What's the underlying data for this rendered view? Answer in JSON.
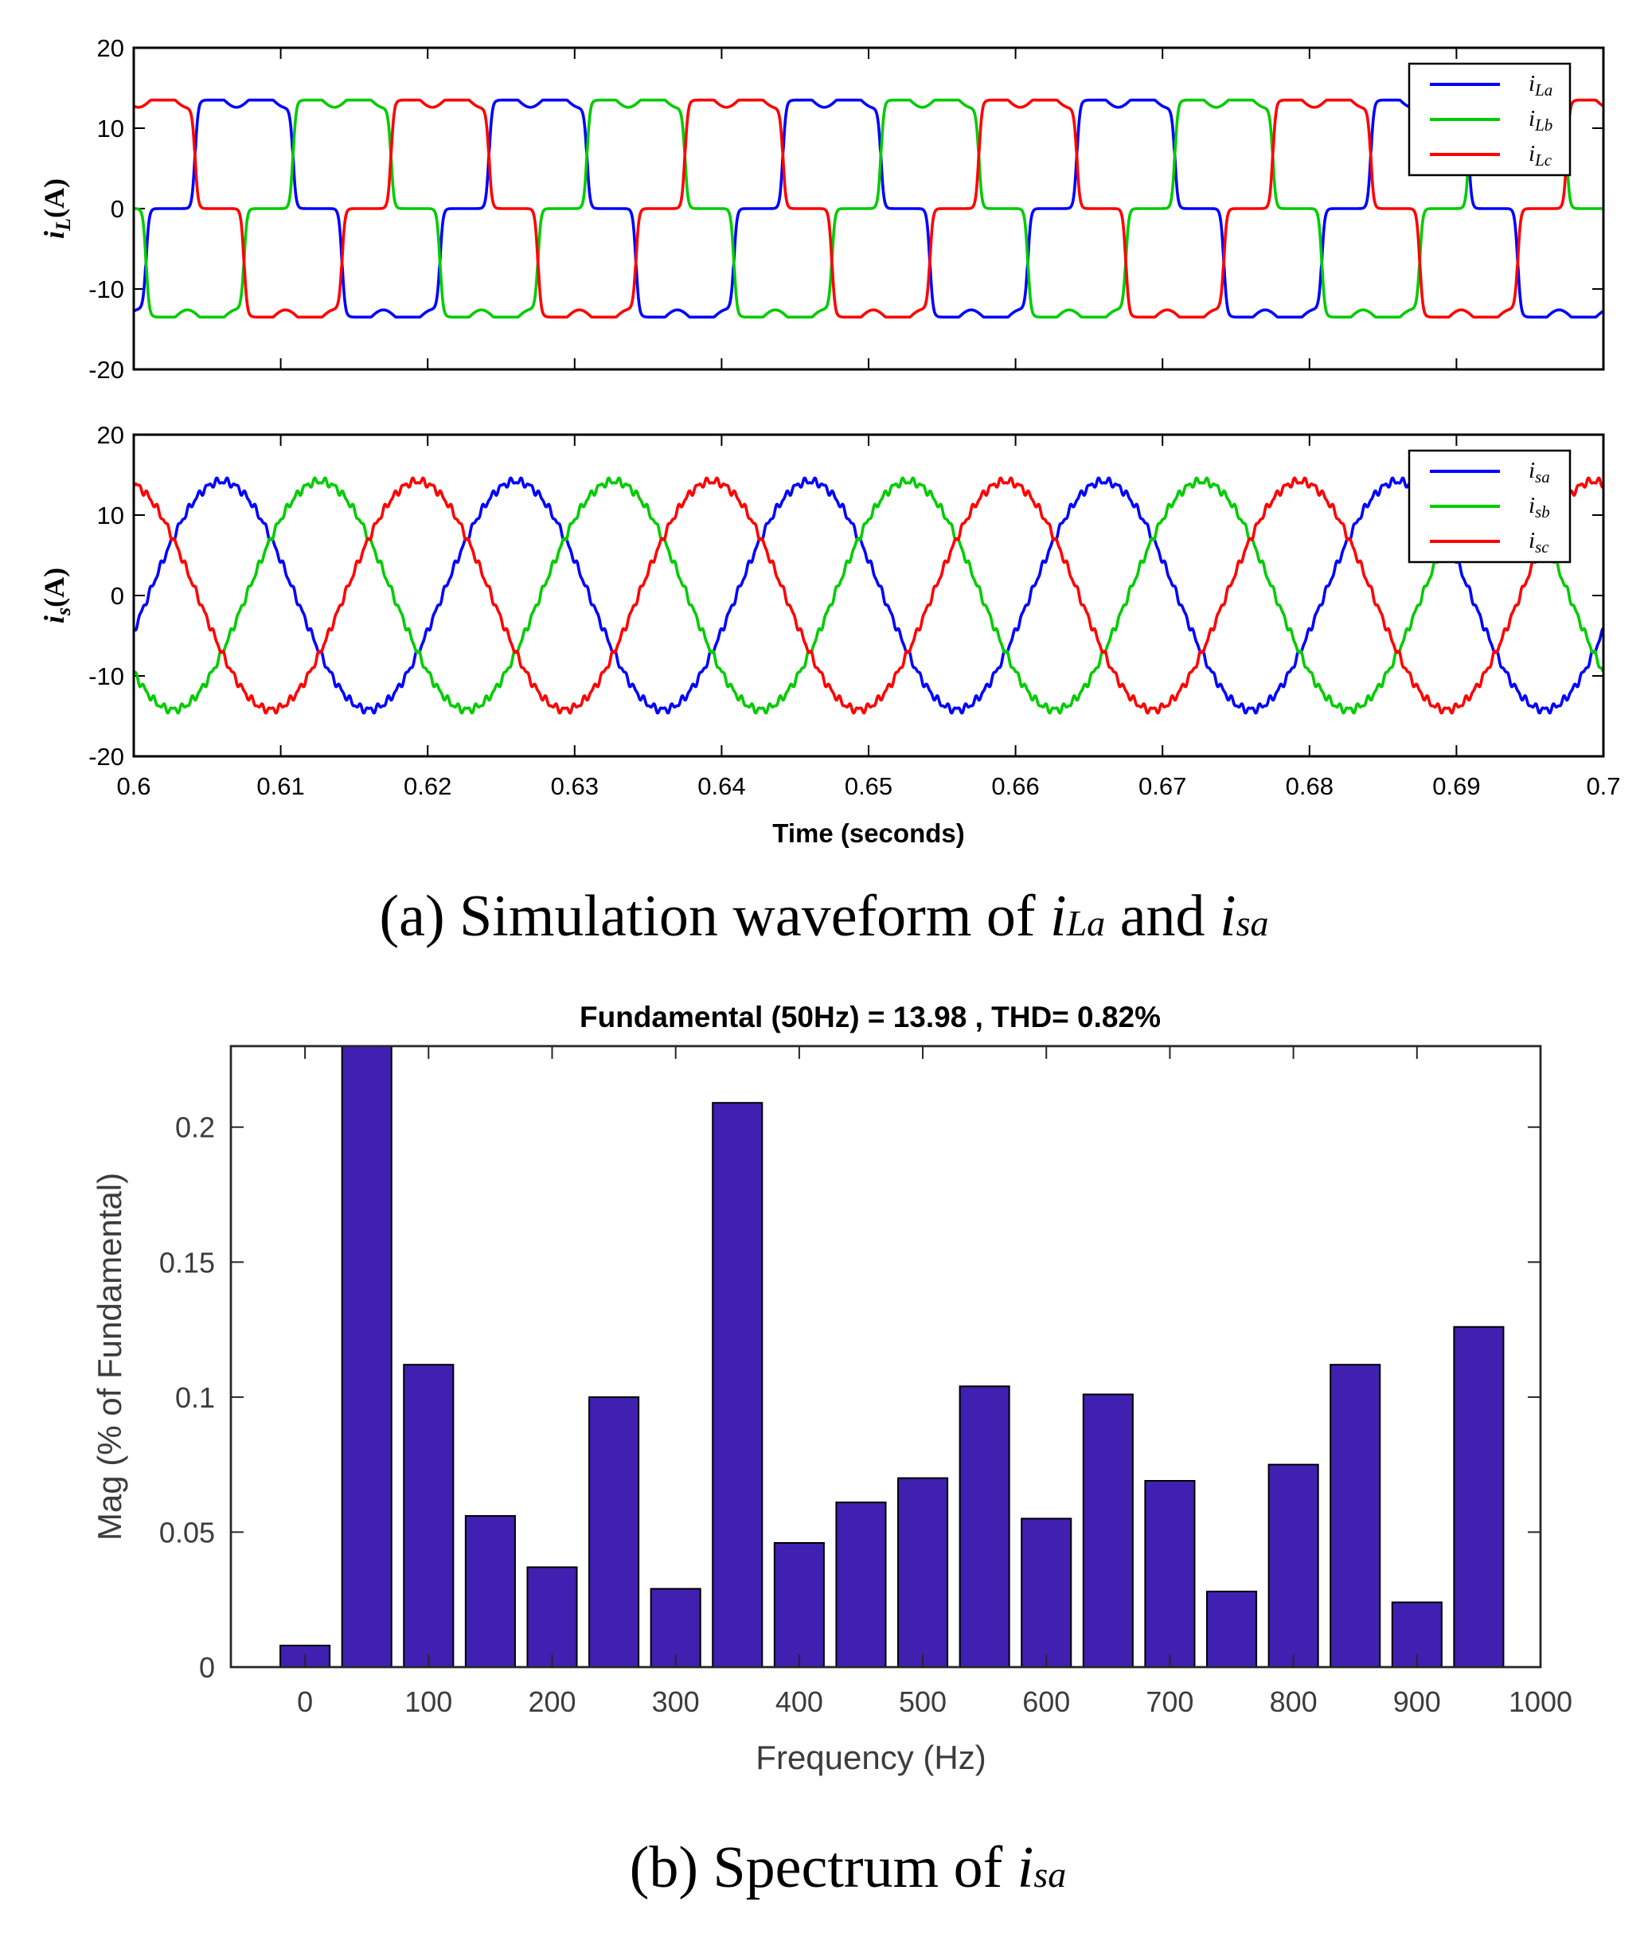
{
  "chart_data": [
    {
      "type": "line",
      "xlim": [
        0.6,
        0.7
      ],
      "ylim": [
        -20,
        20
      ],
      "xticks": [
        "0.6",
        "0.61",
        "0.62",
        "0.63",
        "0.64",
        "0.65",
        "0.66",
        "0.67",
        "0.68",
        "0.69",
        "0.7"
      ],
      "yticks": [
        "20",
        "10",
        "0",
        "-10",
        "-20"
      ],
      "ylabel": {
        "main": "i",
        "sub": "L",
        "tail": "(A)"
      },
      "grid": false,
      "legend_position": "top-right",
      "waveform": {
        "kind": "six-pulse",
        "amplitude": 13.5,
        "frequency_hz": 50,
        "phase_a_zero_crossing_s": 0.6025
      },
      "series": [
        {
          "name": "i",
          "sub": "La",
          "color": "#0000ff",
          "phase_shift_deg": 0
        },
        {
          "name": "i",
          "sub": "Lb",
          "color": "#00cc00",
          "phase_shift_deg": -120
        },
        {
          "name": "i",
          "sub": "Lc",
          "color": "#ff0000",
          "phase_shift_deg": 120
        }
      ]
    },
    {
      "type": "line",
      "xlim": [
        0.6,
        0.7
      ],
      "ylim": [
        -20,
        20
      ],
      "xticks": [
        "0.6",
        "0.61",
        "0.62",
        "0.63",
        "0.64",
        "0.65",
        "0.66",
        "0.67",
        "0.68",
        "0.69",
        "0.7"
      ],
      "yticks": [
        "20",
        "10",
        "0",
        "-10",
        "-20"
      ],
      "xlabel": "Time (seconds)",
      "ylabel": {
        "main": "i",
        "sub": "s",
        "tail": "(A)"
      },
      "grid": false,
      "legend_position": "top-right",
      "waveform": {
        "kind": "sine",
        "amplitude": 14.2,
        "frequency_hz": 50,
        "phase_a_zero_crossing_s": 0.601
      },
      "series": [
        {
          "name": "i",
          "sub": "sa",
          "color": "#0000ff",
          "phase_shift_deg": 0
        },
        {
          "name": "i",
          "sub": "sb",
          "color": "#00cc00",
          "phase_shift_deg": -120
        },
        {
          "name": "i",
          "sub": "sc",
          "color": "#ff0000",
          "phase_shift_deg": 120
        }
      ]
    },
    {
      "type": "bar",
      "title": "Fundamental (50Hz) = 13.98 , THD= 0.82%",
      "xlabel": "Frequency (Hz)",
      "ylabel": "Mag (% of Fundamental)",
      "xlim": [
        -60,
        1000
      ],
      "ylim": [
        0,
        0.23
      ],
      "xticks": [
        "0",
        "100",
        "200",
        "300",
        "400",
        "500",
        "600",
        "700",
        "800",
        "900",
        "1000"
      ],
      "yticks": [
        "0",
        "0.05",
        "0.1",
        "0.15",
        "0.2"
      ],
      "bar_color": "#4020b0",
      "frequencies_hz": [
        0,
        50,
        100,
        150,
        200,
        250,
        300,
        350,
        400,
        450,
        500,
        550,
        600,
        650,
        700,
        750,
        800,
        850,
        900,
        950
      ],
      "values": [
        0.008,
        0.23,
        0.112,
        0.056,
        0.037,
        0.1,
        0.029,
        0.209,
        0.046,
        0.061,
        0.07,
        0.104,
        0.055,
        0.101,
        0.069,
        0.028,
        0.075,
        0.112,
        0.024,
        0.126
      ]
    }
  ],
  "captions": {
    "a": {
      "pre": "(a) Simulation waveform of ",
      "i1": "i",
      "s1": "La",
      "mid": " and ",
      "i2": "i",
      "s2": "sa"
    },
    "b": {
      "pre": "(b) Spectrum of ",
      "i1": "i",
      "s1": "sa"
    }
  }
}
